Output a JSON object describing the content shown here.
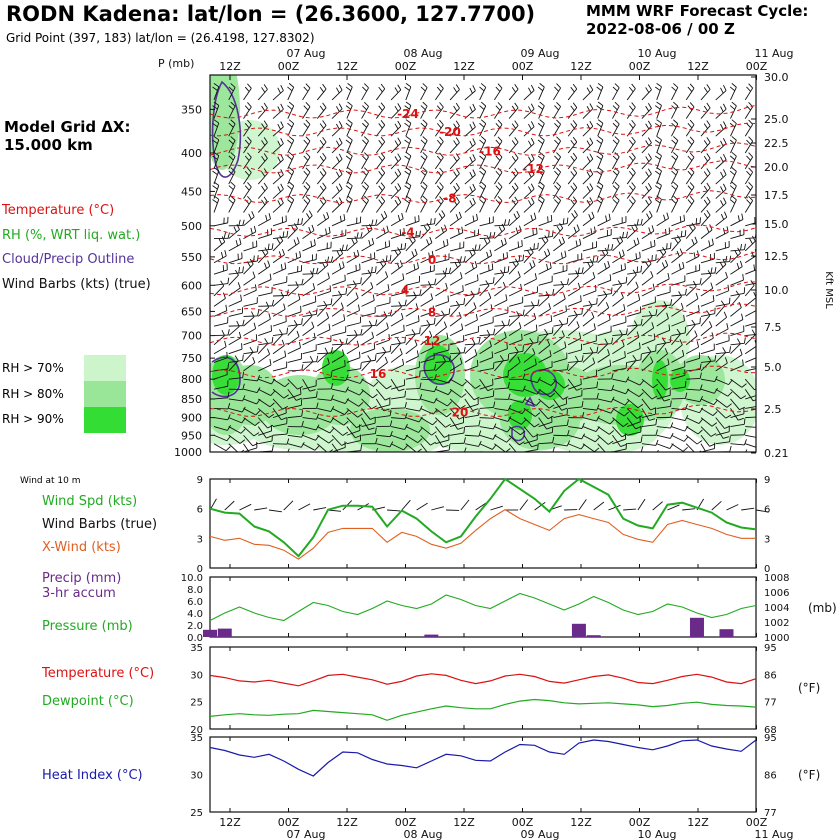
{
  "header": {
    "title": "RODN Kadena:  lat/lon = (26.3600, 127.7700)",
    "grid_point": "Grid Point (397, 183) lat/lon = (26.4198, 127.8302)",
    "cycle_line1": "MMM WRF Forecast Cycle:",
    "cycle_line2": "2022-08-06 / 00  Z",
    "grid_line1": "Model Grid ΔX:",
    "grid_line2": " 15.000 km"
  },
  "colors": {
    "temperature": "#dd1111",
    "rh": "#22aa22",
    "cloud": "#553399",
    "xwind": "#e06020",
    "heat": "#1a1aaa",
    "precip": "#6a2a8a",
    "rh70": "#ccf5cc",
    "rh80": "#99e699",
    "rh90": "#33dd33"
  },
  "chart_data": [
    {
      "type": "heatmap",
      "panel": "sounding",
      "y_title": "P (mb)",
      "right_title": "Kft MSL",
      "p_ticks": [
        "350",
        "400",
        "450",
        "500",
        "550",
        "600",
        "650",
        "700",
        "750",
        "800",
        "850",
        "900",
        "950",
        "1000"
      ],
      "alt_ticks": [
        "30.0",
        "25.0",
        "22.5",
        "20.0",
        "17.5",
        "15.0",
        "12.5",
        "10.0",
        "7.5",
        "5.0",
        "2.5",
        "0.21"
      ],
      "x_ticks_top": [
        "12Z",
        "00Z",
        "12Z",
        "00Z",
        "12Z",
        "00Z",
        "12Z",
        "00Z",
        "12Z",
        "00Z"
      ],
      "x_ticks_bottom": [
        "12Z",
        "00Z",
        "12Z",
        "00Z",
        "12Z",
        "00Z",
        "12Z",
        "00Z",
        "12Z",
        "00Z"
      ],
      "date_labels": [
        "07 Aug",
        "08 Aug",
        "09 Aug",
        "10 Aug",
        "11 Aug"
      ],
      "legend": {
        "temp": "Temperature (°C)",
        "rh": "RH (%, WRT liq. wat.)",
        "cloud": "Cloud/Precip Outline",
        "barbs": "Wind Barbs (kts) (true)",
        "rh70": "RH > 70%",
        "rh80": "RH > 80%",
        "rh90": "RH > 90%"
      },
      "temperature_isotherms": [
        {
          "label": "-24",
          "p": 355
        },
        {
          "label": "-20",
          "p": 375
        },
        {
          "label": "-16",
          "p": 398
        },
        {
          "label": "-12",
          "p": 420
        },
        {
          "label": "-8",
          "p": 460
        },
        {
          "label": "-4",
          "p": 510
        },
        {
          "label": "0",
          "p": 555
        },
        {
          "label": "4",
          "p": 610
        },
        {
          "label": "8",
          "p": 652
        },
        {
          "label": "12",
          "p": 712
        },
        {
          "label": "16",
          "p": 787
        },
        {
          "label": "20",
          "p": 886
        }
      ]
    },
    {
      "type": "line",
      "panel": "wind",
      "title": "Wind at 10 m",
      "labels": {
        "spd": "Wind Spd (kts)",
        "barbs": "Wind Barbs (true)",
        "xwind": "X-Wind (kts)"
      },
      "y_ticks": [
        "9",
        "6",
        "3",
        "0"
      ],
      "ylim": [
        0,
        9
      ],
      "series": [
        {
          "name": "Wind Spd (kts)",
          "values": [
            6.0,
            5.6,
            5.5,
            4.2,
            3.7,
            2.6,
            1.2,
            3.1,
            5.9,
            6.3,
            6.3,
            6.2,
            4.2,
            5.8,
            5.0,
            3.7,
            2.6,
            3.2,
            5.2,
            7.0,
            9.0,
            8.0,
            7.0,
            5.7,
            7.8,
            9.0,
            8.2,
            7.4,
            5.0,
            4.3,
            4.0,
            6.4,
            6.6,
            6.1,
            5.6,
            4.6,
            4.1,
            3.9
          ]
        },
        {
          "name": "X-Wind (kts)",
          "values": [
            3.2,
            2.8,
            3.0,
            2.4,
            2.3,
            1.8,
            0.9,
            2.0,
            3.6,
            4.0,
            4.0,
            4.0,
            2.6,
            3.6,
            3.2,
            2.4,
            2.0,
            2.5,
            3.8,
            5.0,
            5.9,
            5.0,
            4.4,
            3.8,
            5.0,
            5.4,
            5.0,
            4.6,
            3.4,
            2.9,
            2.6,
            4.4,
            4.8,
            4.4,
            4.0,
            3.4,
            3.0,
            3.0
          ]
        }
      ]
    },
    {
      "type": "line",
      "panel": "precip",
      "labels": {
        "precip1": "Precip (mm)",
        "precip2": "3-hr accum",
        "pressure": "Pressure (mb)"
      },
      "left_ticks": [
        "10.0",
        "8.0",
        "6.0",
        "4.0",
        "2.0",
        "0.0"
      ],
      "right_ticks": [
        "1008",
        "1006",
        "1004",
        "1002",
        "1000"
      ],
      "right_unit": "(mb)",
      "ylim_precip": [
        0,
        10
      ],
      "ylim_pressure": [
        1000,
        1008
      ],
      "precip": [
        1.2,
        1.4,
        0,
        0,
        0,
        0,
        0,
        0,
        0,
        0,
        0,
        0,
        0,
        0,
        0,
        0.4,
        0,
        0,
        0,
        0,
        0,
        0,
        0,
        0,
        0,
        2.2,
        0.3,
        0,
        0,
        0,
        0,
        0,
        0,
        3.2,
        0,
        1.3,
        0,
        0
      ],
      "pressure": [
        1002.2,
        1003.2,
        1004.0,
        1003.2,
        1002.6,
        1002.2,
        1003.4,
        1004.6,
        1004.2,
        1003.4,
        1003.0,
        1003.8,
        1004.8,
        1004.2,
        1003.8,
        1004.4,
        1005.6,
        1005.0,
        1004.2,
        1003.8,
        1004.8,
        1005.8,
        1005.2,
        1004.4,
        1003.6,
        1004.4,
        1005.4,
        1004.6,
        1003.6,
        1003.0,
        1003.4,
        1004.4,
        1004.0,
        1003.2,
        1002.6,
        1003.0,
        1003.8,
        1004.2
      ]
    },
    {
      "type": "line",
      "panel": "temp",
      "labels": {
        "temp": "Temperature (°C)",
        "dew": "Dewpoint (°C)"
      },
      "left_ticks": [
        "35",
        "30",
        "25",
        "20"
      ],
      "right_ticks": [
        "95",
        "86",
        "77",
        "68"
      ],
      "right_unit": "(°F)",
      "ylim": [
        20,
        35
      ],
      "series": [
        {
          "name": "Temperature (°C)",
          "values": [
            29.8,
            29.4,
            28.8,
            28.6,
            28.9,
            28.4,
            27.9,
            28.8,
            29.8,
            30.0,
            29.5,
            29.0,
            28.2,
            28.7,
            29.7,
            30.1,
            29.8,
            28.9,
            28.3,
            28.8,
            29.7,
            30.0,
            29.6,
            28.7,
            28.4,
            29.0,
            29.6,
            29.9,
            29.3,
            28.5,
            28.3,
            28.9,
            29.6,
            30.0,
            29.5,
            28.6,
            28.3,
            29.2
          ]
        },
        {
          "name": "Dewpoint (°C)",
          "values": [
            22.3,
            22.6,
            22.8,
            22.6,
            22.5,
            22.7,
            22.8,
            23.4,
            23.2,
            23.0,
            22.8,
            22.6,
            21.6,
            22.5,
            23.1,
            23.7,
            24.2,
            23.9,
            23.7,
            23.7,
            24.5,
            25.1,
            25.4,
            25.2,
            24.8,
            24.6,
            24.7,
            24.8,
            24.6,
            24.4,
            24.1,
            24.3,
            24.7,
            24.9,
            24.5,
            24.3,
            24.2,
            24.0
          ]
        }
      ]
    },
    {
      "type": "line",
      "panel": "heat",
      "labels": {
        "heat": "Heat Index (°C)"
      },
      "left_ticks": [
        "35",
        "30",
        "25"
      ],
      "right_ticks": [
        "95",
        "86",
        "77"
      ],
      "right_unit": "(°F)",
      "ylim": [
        25,
        35
      ],
      "bottom_ticks": [
        "12Z",
        "00Z",
        "12Z",
        "00Z",
        "12Z",
        "00Z",
        "12Z",
        "00Z",
        "12Z",
        "00Z"
      ],
      "series": [
        {
          "name": "Heat Index (°C)",
          "values": [
            33.6,
            33.2,
            32.6,
            32.3,
            32.7,
            31.8,
            30.7,
            29.8,
            31.6,
            33.0,
            32.9,
            32.0,
            31.4,
            31.2,
            30.9,
            31.8,
            32.7,
            32.5,
            31.9,
            31.8,
            33.0,
            34.0,
            33.9,
            33.0,
            32.7,
            34.2,
            34.6,
            34.4,
            34.0,
            33.6,
            33.3,
            33.8,
            34.5,
            34.6,
            33.8,
            33.4,
            33.1,
            34.6
          ]
        }
      ]
    }
  ]
}
